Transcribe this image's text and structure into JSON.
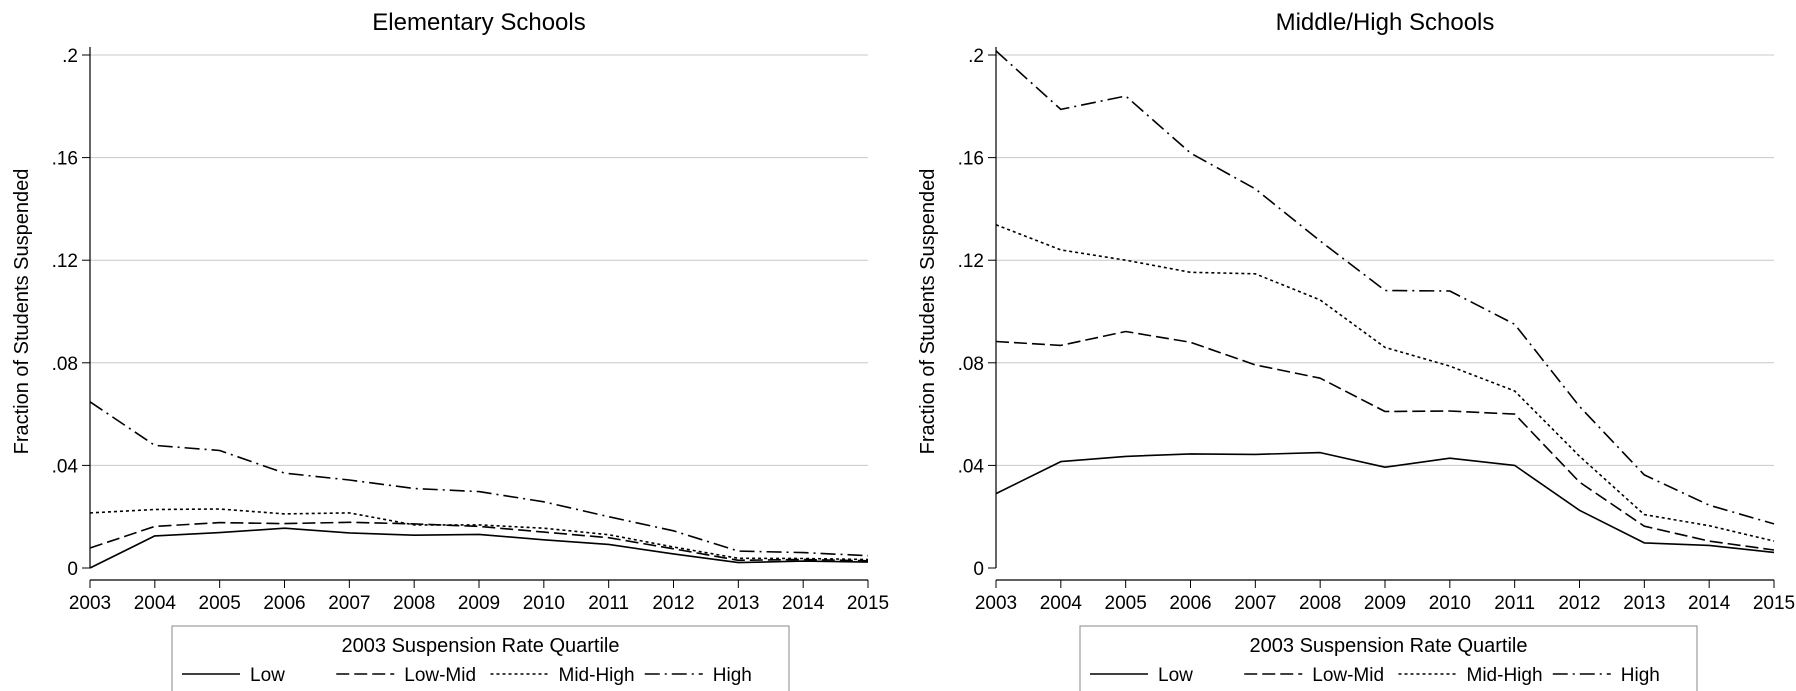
{
  "chart_data": [
    {
      "type": "line",
      "title": "Elementary Schools",
      "xlabel": "",
      "ylabel": "Fraction of Students Suspended",
      "x": [
        2003,
        2004,
        2005,
        2006,
        2007,
        2008,
        2009,
        2010,
        2011,
        2012,
        2013,
        2014,
        2015
      ],
      "ylim": [
        0,
        0.2
      ],
      "yticks": [
        0,
        0.04,
        0.08,
        0.12,
        0.16,
        0.2
      ],
      "ytick_labels": [
        "0",
        ".04",
        ".08",
        ".12",
        ".16",
        ".2"
      ],
      "grid": true,
      "legend": {
        "title": "2003 Suspension Rate Quartile",
        "position": "bottom"
      },
      "series": [
        {
          "name": "Low",
          "style": "solid",
          "values": [
            0.0,
            0.0125,
            0.0138,
            0.0155,
            0.0137,
            0.0128,
            0.0131,
            0.011,
            0.0092,
            0.0055,
            0.0021,
            0.0027,
            0.0023
          ]
        },
        {
          "name": "Low-Mid",
          "style": "dash",
          "values": [
            0.0078,
            0.0162,
            0.0177,
            0.0173,
            0.0178,
            0.0172,
            0.0162,
            0.014,
            0.0118,
            0.0075,
            0.003,
            0.0033,
            0.0028
          ]
        },
        {
          "name": "Mid-High",
          "style": "dot",
          "values": [
            0.0215,
            0.0228,
            0.023,
            0.0211,
            0.0215,
            0.0168,
            0.0168,
            0.0155,
            0.013,
            0.0082,
            0.0038,
            0.0037,
            0.0033
          ]
        },
        {
          "name": "High",
          "style": "dashdot",
          "values": [
            0.0648,
            0.0478,
            0.0458,
            0.037,
            0.0343,
            0.031,
            0.0298,
            0.0258,
            0.02,
            0.0145,
            0.0066,
            0.006,
            0.0048
          ]
        }
      ]
    },
    {
      "type": "line",
      "title": "Middle/High Schools",
      "xlabel": "",
      "ylabel": "Fraction of Students Suspended",
      "x": [
        2003,
        2004,
        2005,
        2006,
        2007,
        2008,
        2009,
        2010,
        2011,
        2012,
        2013,
        2014,
        2015
      ],
      "ylim": [
        0,
        0.2
      ],
      "yticks": [
        0,
        0.04,
        0.08,
        0.12,
        0.16,
        0.2
      ],
      "ytick_labels": [
        "0",
        ".04",
        ".08",
        ".12",
        ".16",
        ".2"
      ],
      "grid": true,
      "legend": {
        "title": "2003 Suspension Rate Quartile",
        "position": "bottom"
      },
      "series": [
        {
          "name": "Low",
          "style": "solid",
          "values": [
            0.029,
            0.0415,
            0.0435,
            0.0445,
            0.0443,
            0.045,
            0.0393,
            0.0428,
            0.04,
            0.0225,
            0.0098,
            0.0088,
            0.0061
          ]
        },
        {
          "name": "Low-Mid",
          "style": "dash",
          "values": [
            0.0883,
            0.0868,
            0.0922,
            0.088,
            0.0792,
            0.074,
            0.061,
            0.0612,
            0.06,
            0.0335,
            0.0163,
            0.0105,
            0.007
          ]
        },
        {
          "name": "Mid-High",
          "style": "dot",
          "values": [
            0.1338,
            0.124,
            0.12,
            0.1153,
            0.1147,
            0.1045,
            0.086,
            0.0787,
            0.069,
            0.0436,
            0.0208,
            0.0165,
            0.0105
          ]
        },
        {
          "name": "High",
          "style": "dashdot",
          "values": [
            0.2016,
            0.1788,
            0.184,
            0.1618,
            0.1478,
            0.1275,
            0.1082,
            0.108,
            0.095,
            0.063,
            0.0363,
            0.0245,
            0.0172
          ]
        }
      ]
    }
  ]
}
